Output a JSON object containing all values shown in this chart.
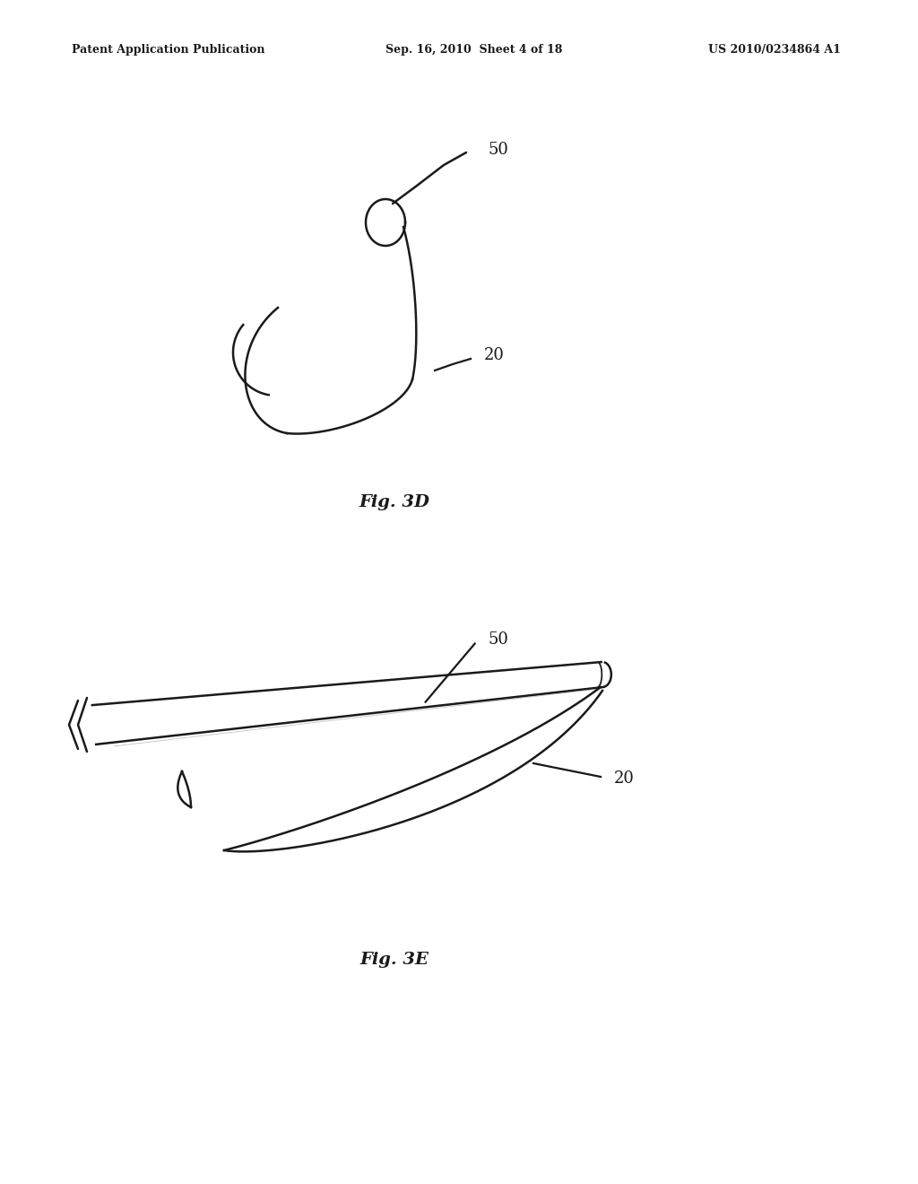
{
  "background_color": "#ffffff",
  "line_color": "#1a1a1a",
  "text_color": "#1a1a1a",
  "header_left": "Patent Application Publication",
  "header_center": "Sep. 16, 2010  Sheet 4 of 18",
  "header_right": "US 2010/0234864 A1",
  "fig3d_label": "Fig. 3D",
  "fig3e_label": "Fig. 3E",
  "label_50": "50",
  "label_20": "20"
}
